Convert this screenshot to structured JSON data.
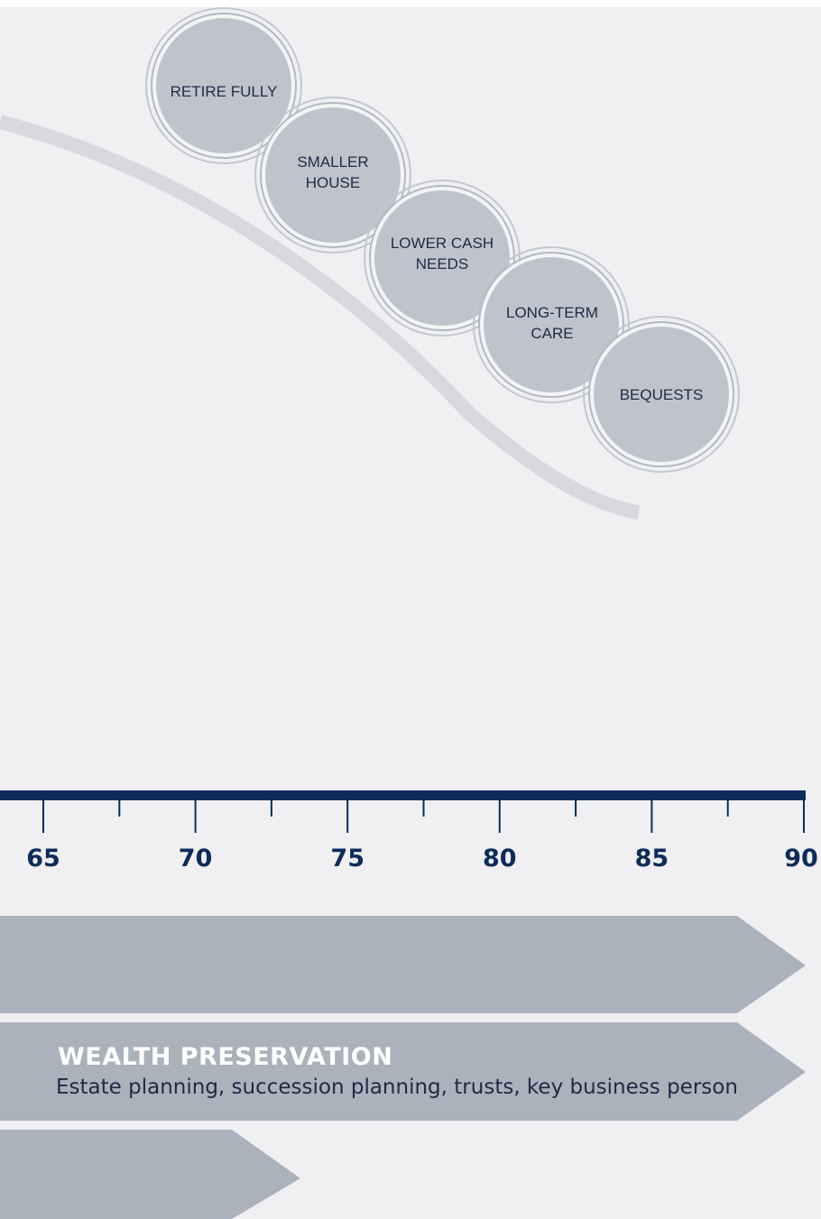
{
  "bubbles": [
    {
      "id": "retire",
      "lines": [
        "RETIRE FULLY"
      ]
    },
    {
      "id": "house",
      "lines": [
        "SMALLER",
        "HOUSE"
      ]
    },
    {
      "id": "cash",
      "lines": [
        "LOWER CASH",
        "NEEDS"
      ]
    },
    {
      "id": "care",
      "lines": [
        "LONG-TERM",
        "CARE"
      ]
    },
    {
      "id": "bequests",
      "lines": [
        "BEQUESTS"
      ]
    }
  ],
  "timeline": {
    "labels": [
      "65",
      "70",
      "75",
      "80",
      "85",
      "90"
    ],
    "start_age": 65,
    "end_age": 90
  },
  "bands": [
    {
      "title": "",
      "text": ""
    },
    {
      "title": "WEALTH PRESERVATION",
      "text": "Estate planning, succession planning, trusts, key business person"
    },
    {
      "title": "",
      "text": ""
    }
  ],
  "colors": {
    "background": "#f0f0f3",
    "timeline": "#0d2b5b",
    "band": "#abb2bc",
    "bubble_fill": "#bfc4cc",
    "curve": "#d7d9de"
  }
}
